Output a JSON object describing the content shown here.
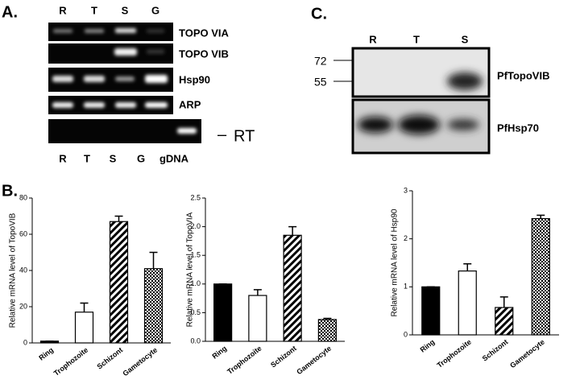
{
  "panels": {
    "a": "A.",
    "b": "B.",
    "c": "C."
  },
  "gel": {
    "lanes_top": [
      "R",
      "T",
      "S",
      "G"
    ],
    "rows": [
      "TOPO VIA",
      "TOPO VIB",
      "Hsp90",
      "ARP"
    ],
    "lanes_bottom": [
      "R",
      "T",
      "S",
      "G",
      "gDNA"
    ],
    "rt_dash": "–",
    "rt": "RT"
  },
  "western": {
    "lanes": [
      "R",
      "T",
      "S"
    ],
    "markers": [
      "72",
      "55"
    ],
    "rows": [
      "PfTopoVIB",
      "PfHsp70"
    ]
  },
  "chart_data": [
    {
      "type": "bar",
      "y_label": "Relative mRNA level of TopoVIB",
      "categories": [
        "Ring",
        "Trophozoite",
        "Schizont",
        "Gametocyte"
      ],
      "values": [
        1,
        17,
        67,
        41
      ],
      "errors": [
        0,
        5,
        3,
        9
      ],
      "fills": [
        "black",
        "white",
        "hatch",
        "check"
      ],
      "ylim": [
        0,
        80
      ],
      "yticks": [
        0,
        20,
        40,
        60,
        80
      ]
    },
    {
      "type": "bar",
      "y_label": "Relative mRNA level of TopoVIA",
      "categories": [
        "Ring",
        "Trophozoite",
        "Schizont",
        "Gametocyte"
      ],
      "values": [
        1.0,
        0.8,
        1.85,
        0.38
      ],
      "errors": [
        0,
        0.1,
        0.15,
        0.02
      ],
      "fills": [
        "black",
        "white",
        "hatch",
        "check"
      ],
      "ylim": [
        0,
        2.5
      ],
      "yticks": [
        {
          "value": 0,
          "label": "0.0"
        },
        0.5,
        {
          "value": 1,
          "label": "1.0"
        },
        1.5,
        {
          "value": 2,
          "label": "2.0"
        },
        2.5
      ]
    },
    {
      "type": "bar",
      "y_label": "Relative mRNA level of Hsp90",
      "categories": [
        "Ring",
        "Trophozoite",
        "Schizont",
        "Gametocyte"
      ],
      "values": [
        1,
        1.33,
        0.57,
        2.42
      ],
      "errors": [
        0,
        0.15,
        0.22,
        0.07
      ],
      "fills": [
        "black",
        "white",
        "hatch",
        "check"
      ],
      "ylim": [
        0,
        3
      ],
      "yticks": [
        0,
        1,
        2,
        3
      ]
    }
  ]
}
